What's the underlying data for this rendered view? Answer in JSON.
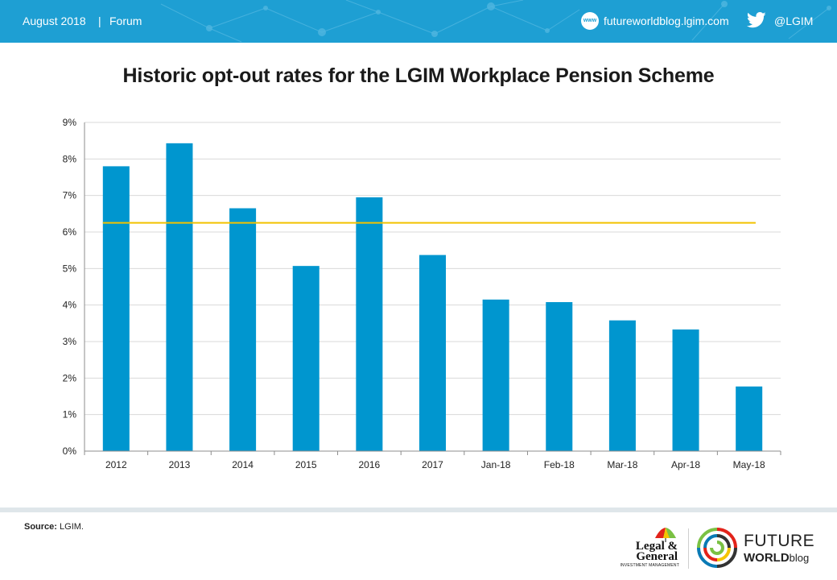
{
  "header": {
    "date": "August 2018",
    "separator": "|",
    "section": "Forum",
    "site_icon_text": "www",
    "site": "futureworldblog.lgim.com",
    "twitter_handle": "@LGIM"
  },
  "colors": {
    "header_bg": "#1e9fd3",
    "bar": "#0096cf",
    "average_line": "#f2c200",
    "grid": "#d9d9d9"
  },
  "chart_data": {
    "type": "bar",
    "title": "Historic opt-out rates for the LGIM Workplace Pension Scheme",
    "categories": [
      "2012",
      "2013",
      "2014",
      "2015",
      "2016",
      "2017",
      "Jan-18",
      "Feb-18",
      "Mar-18",
      "Apr-18",
      "May-18"
    ],
    "values": [
      7.8,
      8.43,
      6.65,
      5.07,
      6.95,
      5.37,
      4.15,
      4.08,
      3.58,
      3.33,
      1.77
    ],
    "average_line": 6.25,
    "ylim": [
      0,
      9
    ],
    "yticks": [
      "0%",
      "1%",
      "2%",
      "3%",
      "4%",
      "5%",
      "6%",
      "7%",
      "8%",
      "9%"
    ],
    "grid": true,
    "xlabel": "",
    "ylabel": ""
  },
  "footer": {
    "source_label": "Source:",
    "source_value": "LGIM.",
    "lg_line1": "Legal &",
    "lg_line2": "General",
    "lg_line3": "INVESTMENT MANAGEMENT",
    "fw_line1": "FUTURE",
    "fw_line2a": "WORLD",
    "fw_line2b": "blog"
  }
}
